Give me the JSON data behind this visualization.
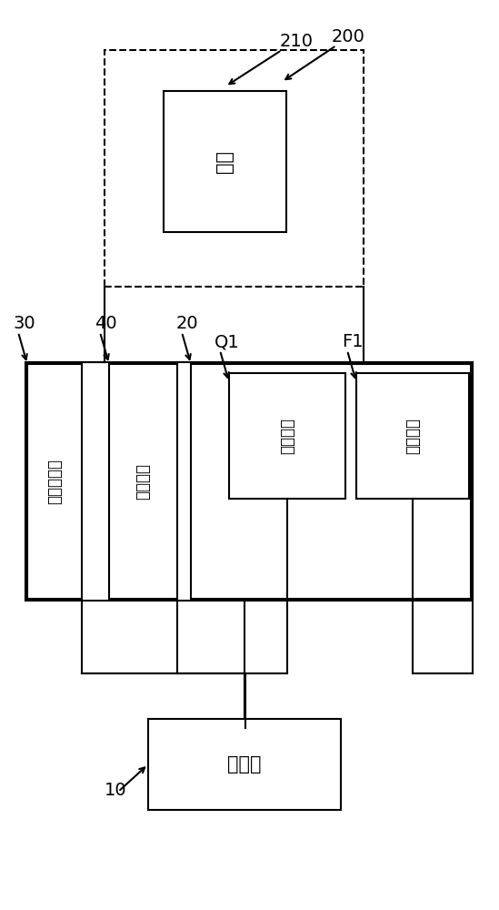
{
  "bg_color": "#ffffff",
  "line_color": "#000000",
  "box_color": "#ffffff",
  "box_edge": "#000000",
  "dashed_box_edge": "#000000",
  "label_200": "200",
  "label_210": "210",
  "label_load": "负载",
  "label_30": "30",
  "label_main_circuit": "供电主回路",
  "label_40": "40",
  "label_control": "控制模块",
  "label_20": "20",
  "label_Q1": "Q1",
  "label_switch": "第一开关",
  "label_F1": "F1",
  "label_therm": "热敏元件",
  "label_10": "10",
  "label_battery": "电池组",
  "figsize": [
    5.49,
    10.0
  ],
  "dpi": 100
}
